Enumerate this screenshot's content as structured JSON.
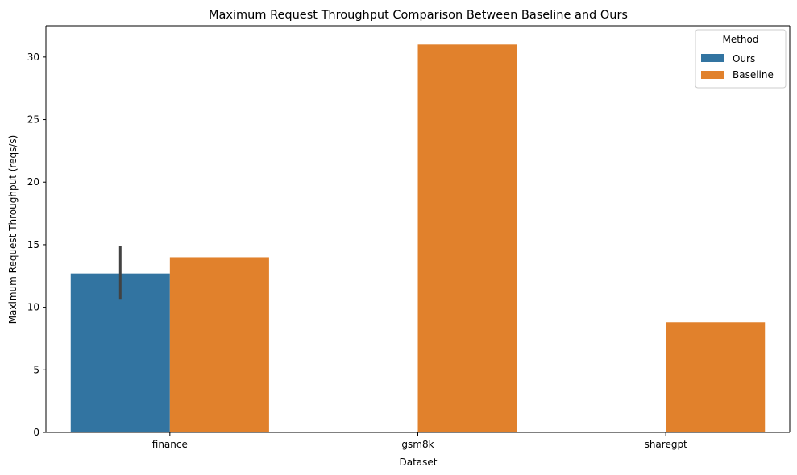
{
  "chart_data": {
    "type": "bar",
    "title": "Maximum Request Throughput Comparison Between Baseline and Ours",
    "xlabel": "Dataset",
    "ylabel": "Maximum Request Throughput (reqs/s)",
    "categories": [
      "finance",
      "gsm8k",
      "sharegpt"
    ],
    "series": [
      {
        "name": "Ours",
        "color": "#3274a1",
        "values": [
          12.7,
          null,
          null
        ],
        "error": [
          [
            10.6,
            14.9
          ],
          null,
          null
        ]
      },
      {
        "name": "Baseline",
        "color": "#e1812c",
        "values": [
          14.0,
          31.0,
          8.8
        ],
        "error": [
          null,
          null,
          null
        ]
      }
    ],
    "ylim": [
      0,
      32.5
    ],
    "yticks": [
      0,
      5,
      10,
      15,
      20,
      25,
      30
    ],
    "ytick_labels": [
      "0",
      "5",
      "10",
      "15",
      "20",
      "25",
      "30"
    ],
    "grid": false,
    "legend": {
      "title": "Method",
      "position": "top-right",
      "entries": [
        "Ours",
        "Baseline"
      ]
    },
    "error_bar_color": "#424242"
  }
}
